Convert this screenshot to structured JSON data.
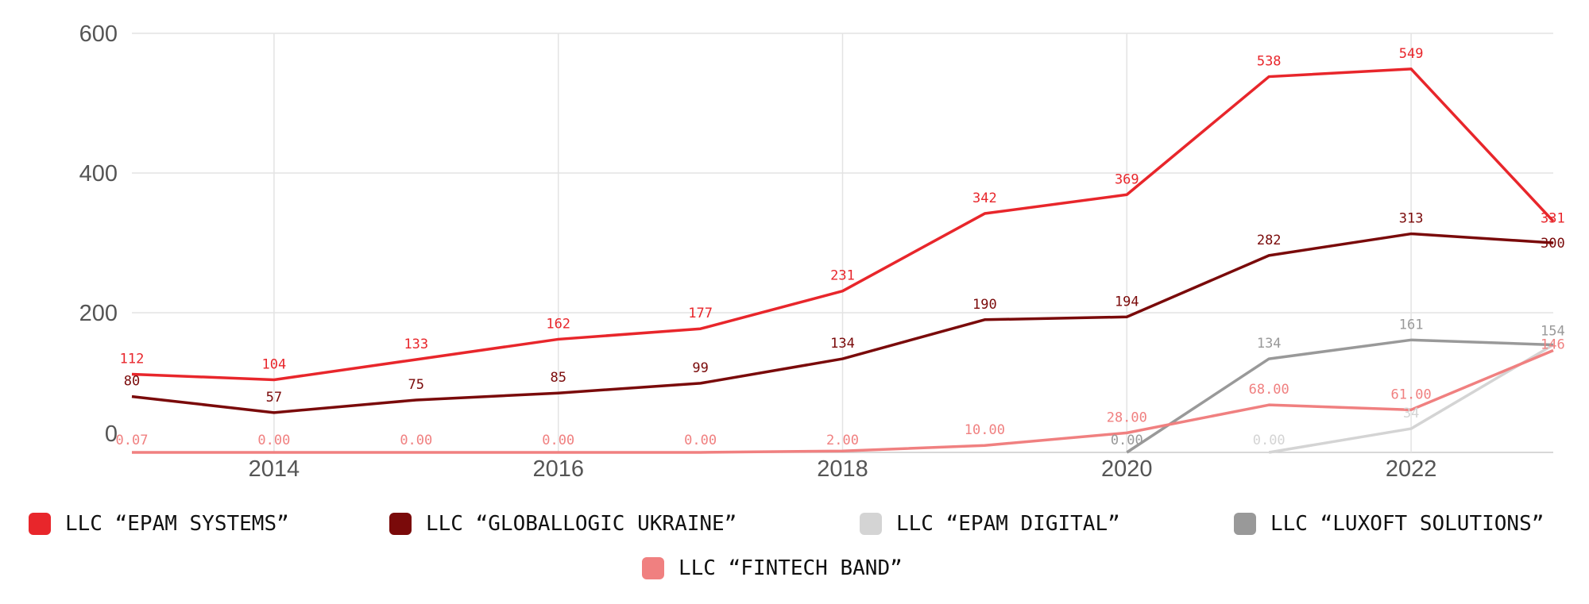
{
  "chart_data": {
    "type": "line",
    "x": [
      2013,
      2014,
      2015,
      2016,
      2017,
      2018,
      2019,
      2020,
      2021,
      2022,
      2023
    ],
    "x_ticks": [
      "2014",
      "2016",
      "2018",
      "2020",
      "2022"
    ],
    "y_ticks": [
      "0",
      "200",
      "400",
      "600"
    ],
    "ylim": [
      0,
      600
    ],
    "grid": true,
    "legend_position": "bottom",
    "series": [
      {
        "name": "LLC “EPAM SYSTEMS”",
        "color": "#e8262b",
        "values": [
          112,
          104,
          133,
          162,
          177,
          231,
          342,
          369,
          538,
          549,
          331
        ],
        "labels": [
          "112",
          "104",
          "133",
          "162",
          "177",
          "231",
          "342",
          "369",
          "538",
          "549",
          "331"
        ]
      },
      {
        "name": "LLC “GLOBALLOGIC UKRAINE”",
        "color": "#7a0a0a",
        "values": [
          80,
          57,
          75,
          85,
          99,
          134,
          190,
          194,
          282,
          313,
          300
        ],
        "labels": [
          "80",
          "57",
          "75",
          "85",
          "99",
          "134",
          "190",
          "194",
          "282",
          "313",
          "300"
        ]
      },
      {
        "name": "LLC “EPAM DIGITAL”",
        "color": "#d4d4d4",
        "values": [
          null,
          null,
          null,
          null,
          null,
          null,
          null,
          null,
          0,
          34,
          154
        ],
        "labels": [
          "",
          "",
          "",
          "",
          "",
          "",
          "",
          "",
          "0.00",
          "34",
          ""
        ]
      },
      {
        "name": "LLC “LUXOFT SOLUTIONS”",
        "color": "#999999",
        "values": [
          null,
          null,
          null,
          null,
          null,
          null,
          null,
          0,
          134,
          161,
          154
        ],
        "labels": [
          "",
          "",
          "",
          "",
          "",
          "",
          "",
          "0.00",
          "134",
          "161",
          "154"
        ]
      },
      {
        "name": "LLC “FINTECH BAND”",
        "color": "#f08080",
        "values": [
          0.07,
          0,
          0,
          0,
          0,
          2,
          10,
          28,
          68,
          61,
          146
        ],
        "labels": [
          "0.07",
          "0.00",
          "0.00",
          "0.00",
          "0.00",
          "2.00",
          "10.00",
          "28.00",
          "68.00",
          "61.00",
          "146"
        ]
      }
    ]
  }
}
